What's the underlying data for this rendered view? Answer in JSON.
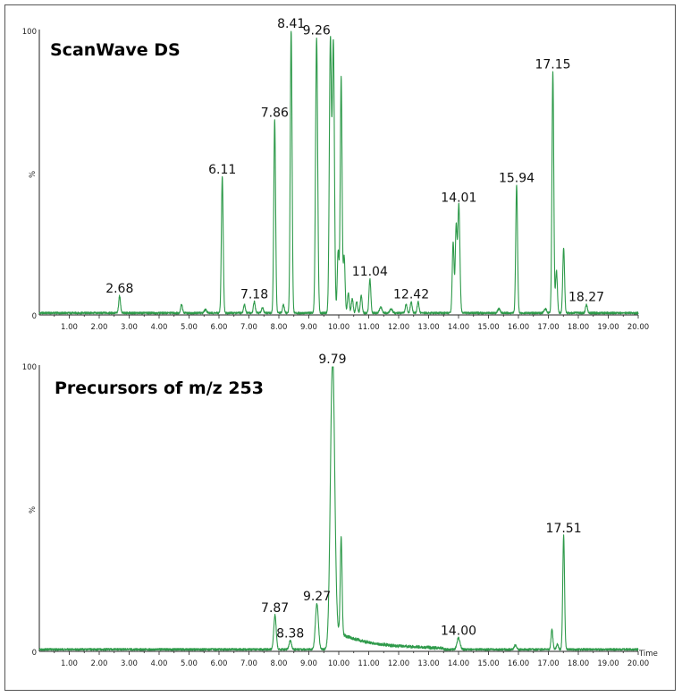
{
  "chart_data": [
    {
      "type": "line",
      "title": "ScanWave DS",
      "ylabel": "%",
      "xlabel": "",
      "xlim": [
        0,
        20
      ],
      "ylim": [
        0,
        100
      ],
      "y_tick_top": "100",
      "y_tick_bottom": "0",
      "x_ticks": [
        "1.00",
        "2.00",
        "3.00",
        "4.00",
        "5.00",
        "6.00",
        "7.00",
        "8.00",
        "9.00",
        "10.00",
        "11.00",
        "12.00",
        "13.00",
        "14.00",
        "15.00",
        "16.00",
        "17.00",
        "18.00",
        "19.00",
        "20.00"
      ],
      "line_color": "#2e9a4a",
      "peaks": [
        {
          "x": 2.68,
          "y": 6,
          "label": "2.68",
          "w": 0.03
        },
        {
          "x": 4.75,
          "y": 3,
          "label": "",
          "w": 0.03
        },
        {
          "x": 5.55,
          "y": 1.2,
          "label": "",
          "w": 0.04
        },
        {
          "x": 6.11,
          "y": 48,
          "label": "6.11",
          "w": 0.03
        },
        {
          "x": 6.85,
          "y": 3,
          "label": "",
          "w": 0.03
        },
        {
          "x": 7.18,
          "y": 4,
          "label": "7.18",
          "w": 0.03
        },
        {
          "x": 7.45,
          "y": 2,
          "label": "",
          "w": 0.03
        },
        {
          "x": 7.86,
          "y": 68,
          "label": "7.86",
          "w": 0.03
        },
        {
          "x": 8.15,
          "y": 3,
          "label": "",
          "w": 0.03
        },
        {
          "x": 8.41,
          "y": 100,
          "label": "8.41",
          "w": 0.03
        },
        {
          "x": 9.26,
          "y": 97,
          "label": "9.26",
          "w": 0.035
        },
        {
          "x": 9.72,
          "y": 96,
          "label": "",
          "w": 0.035
        },
        {
          "x": 9.82,
          "y": 95,
          "label": "",
          "w": 0.035
        },
        {
          "x": 9.98,
          "y": 22,
          "label": "",
          "w": 0.03
        },
        {
          "x": 10.08,
          "y": 83,
          "label": "",
          "w": 0.03
        },
        {
          "x": 10.18,
          "y": 20,
          "label": "",
          "w": 0.03
        },
        {
          "x": 10.32,
          "y": 7,
          "label": "",
          "w": 0.03
        },
        {
          "x": 10.45,
          "y": 5,
          "label": "",
          "w": 0.03
        },
        {
          "x": 10.6,
          "y": 4,
          "label": "",
          "w": 0.03
        },
        {
          "x": 10.75,
          "y": 6,
          "label": "",
          "w": 0.03
        },
        {
          "x": 11.04,
          "y": 12,
          "label": "11.04",
          "w": 0.03
        },
        {
          "x": 11.4,
          "y": 2,
          "label": "",
          "w": 0.04
        },
        {
          "x": 11.75,
          "y": 1.5,
          "label": "",
          "w": 0.04
        },
        {
          "x": 12.25,
          "y": 3,
          "label": "",
          "w": 0.03
        },
        {
          "x": 12.42,
          "y": 4,
          "label": "12.42",
          "w": 0.03
        },
        {
          "x": 12.65,
          "y": 4,
          "label": "",
          "w": 0.03
        },
        {
          "x": 13.82,
          "y": 25,
          "label": "",
          "w": 0.03
        },
        {
          "x": 13.92,
          "y": 30,
          "label": "",
          "w": 0.03
        },
        {
          "x": 14.01,
          "y": 38,
          "label": "14.01",
          "w": 0.035
        },
        {
          "x": 15.35,
          "y": 1.5,
          "label": "",
          "w": 0.04
        },
        {
          "x": 15.94,
          "y": 45,
          "label": "15.94",
          "w": 0.03
        },
        {
          "x": 16.9,
          "y": 1.5,
          "label": "",
          "w": 0.04
        },
        {
          "x": 17.15,
          "y": 85,
          "label": "17.15",
          "w": 0.03
        },
        {
          "x": 17.27,
          "y": 15,
          "label": "",
          "w": 0.03
        },
        {
          "x": 17.51,
          "y": 23,
          "label": "",
          "w": 0.03
        },
        {
          "x": 18.27,
          "y": 3,
          "label": "18.27",
          "w": 0.03
        }
      ]
    },
    {
      "type": "line",
      "title": "Precursors of m/z 253",
      "ylabel": "%",
      "xlabel": "Time",
      "xlim": [
        0,
        20
      ],
      "ylim": [
        0,
        100
      ],
      "y_tick_top": "100",
      "y_tick_bottom": "0",
      "x_ticks": [
        "1.00",
        "2.00",
        "3.00",
        "4.00",
        "5.00",
        "6.00",
        "7.00",
        "8.00",
        "9.00",
        "10.00",
        "11.00",
        "12.00",
        "13.00",
        "14.00",
        "15.00",
        "16.00",
        "17.00",
        "18.00",
        "19.00",
        "20.00"
      ],
      "line_color": "#2e9a4a",
      "peaks": [
        {
          "x": 7.87,
          "y": 12,
          "label": "7.87",
          "w": 0.04
        },
        {
          "x": 8.38,
          "y": 3,
          "label": "8.38",
          "w": 0.04
        },
        {
          "x": 9.27,
          "y": 16,
          "label": "9.27",
          "w": 0.05
        },
        {
          "x": 9.79,
          "y": 100,
          "label": "9.79",
          "w": 0.07
        },
        {
          "x": 10.08,
          "y": 34,
          "label": "",
          "w": 0.03
        },
        {
          "x": 14.0,
          "y": 4,
          "label": "14.00",
          "w": 0.05
        },
        {
          "x": 15.9,
          "y": 1.5,
          "label": "",
          "w": 0.04
        },
        {
          "x": 17.12,
          "y": 7,
          "label": "",
          "w": 0.03
        },
        {
          "x": 17.3,
          "y": 2,
          "label": "",
          "w": 0.03
        },
        {
          "x": 17.51,
          "y": 40,
          "label": "17.51",
          "w": 0.03
        }
      ],
      "tail": {
        "from": 9.79,
        "to": 13.5,
        "start": 6,
        "end": 0.8
      }
    }
  ]
}
